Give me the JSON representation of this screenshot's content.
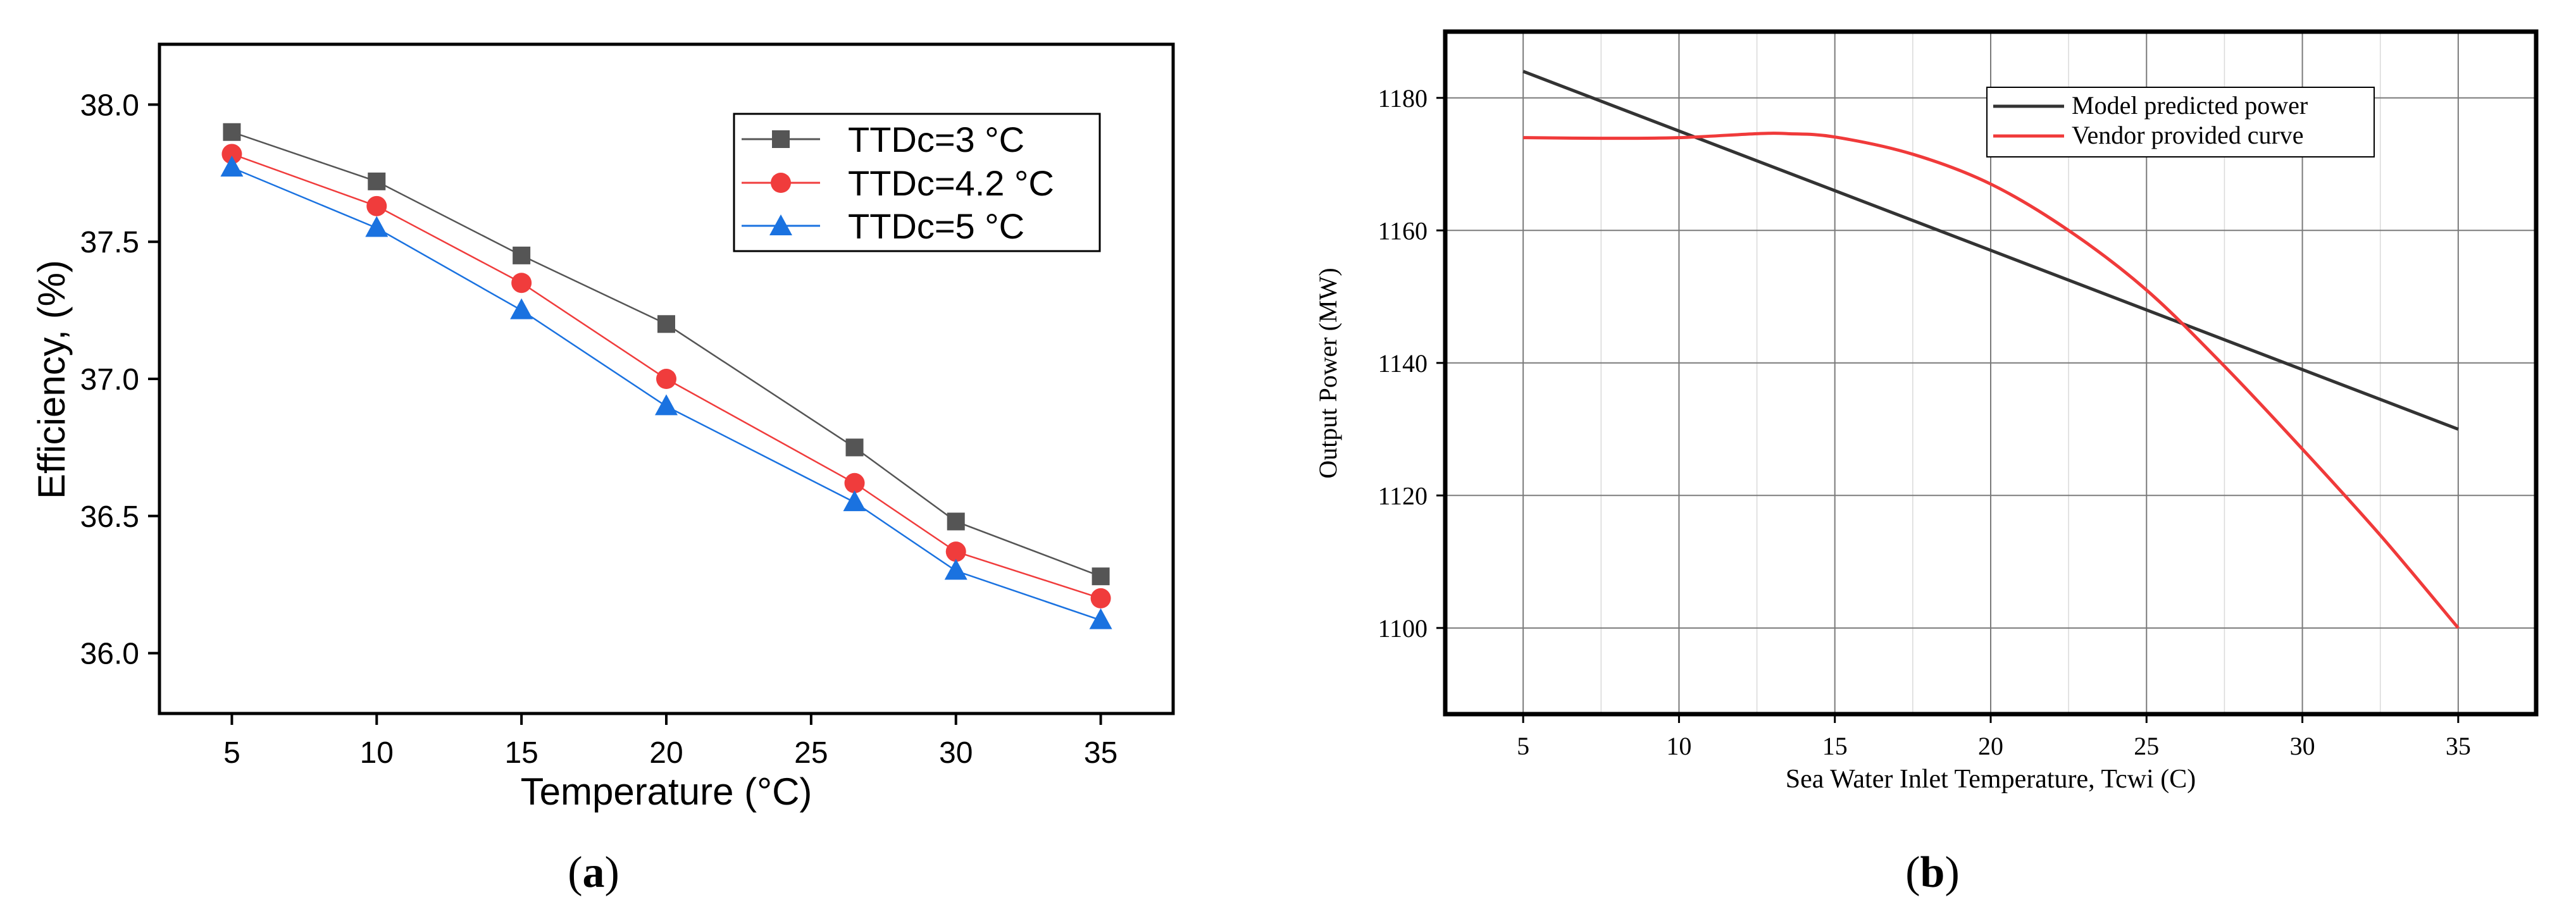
{
  "chart_data": [
    {
      "type": "line",
      "panel_label": "a",
      "xlabel": "Temperature (°C)",
      "ylabel": "Efficiency, (%)",
      "xlim": [
        2.5,
        37.5
      ],
      "ylim": [
        35.78,
        38.22
      ],
      "x_ticks": [
        "5",
        "10",
        "15",
        "20",
        "25",
        "30",
        "35"
      ],
      "y_ticks": [
        "36.0",
        "36.5",
        "37.0",
        "37.5",
        "38.0"
      ],
      "legend_position": "top-right",
      "series": [
        {
          "name": "TTDc=3 °C",
          "marker": "square",
          "color": "#555555",
          "x": [
            5,
            10,
            15,
            20,
            26.5,
            30,
            35
          ],
          "values": [
            37.9,
            37.72,
            37.45,
            37.2,
            36.75,
            36.48,
            36.28
          ]
        },
        {
          "name": "TTDc=4.2 °C",
          "marker": "circle",
          "color": "#f03c3c",
          "x": [
            5,
            10,
            15,
            20,
            26.5,
            30,
            35
          ],
          "values": [
            37.82,
            37.63,
            37.35,
            37.0,
            36.62,
            36.37,
            36.2
          ]
        },
        {
          "name": "TTDc=5 °C",
          "marker": "triangle",
          "color": "#1a72e0",
          "x": [
            5,
            10,
            15,
            20,
            26.5,
            30,
            35
          ],
          "values": [
            37.77,
            37.55,
            37.25,
            36.9,
            36.55,
            36.3,
            36.12
          ]
        }
      ]
    },
    {
      "type": "line",
      "panel_label": "b",
      "xlabel": "Sea Water Inlet Temperature, Tcwi (C)",
      "ylabel": "Output Power (MW)",
      "xlim": [
        2.5,
        37.5
      ],
      "ylim": [
        1087,
        1190
      ],
      "x_ticks": [
        "5",
        "10",
        "15",
        "20",
        "25",
        "30",
        "35"
      ],
      "y_ticks": [
        "1100",
        "1120",
        "1140",
        "1160",
        "1180"
      ],
      "grid": true,
      "legend_position": "top-right",
      "series": [
        {
          "name": "Model predicted power",
          "color": "#333333",
          "x": [
            5,
            35
          ],
          "values": [
            1184,
            1130
          ]
        },
        {
          "name": "Vendor provided curve",
          "color": "#f03a3a",
          "x": [
            5,
            7.5,
            10,
            12.5,
            13.5,
            15,
            17.5,
            20,
            22.5,
            25,
            27.5,
            30,
            32.5,
            35
          ],
          "values": [
            1174,
            1173.9,
            1174,
            1174.6,
            1174.6,
            1174.1,
            1171.5,
            1167,
            1160,
            1151,
            1139.5,
            1127,
            1114,
            1100
          ]
        }
      ]
    }
  ]
}
